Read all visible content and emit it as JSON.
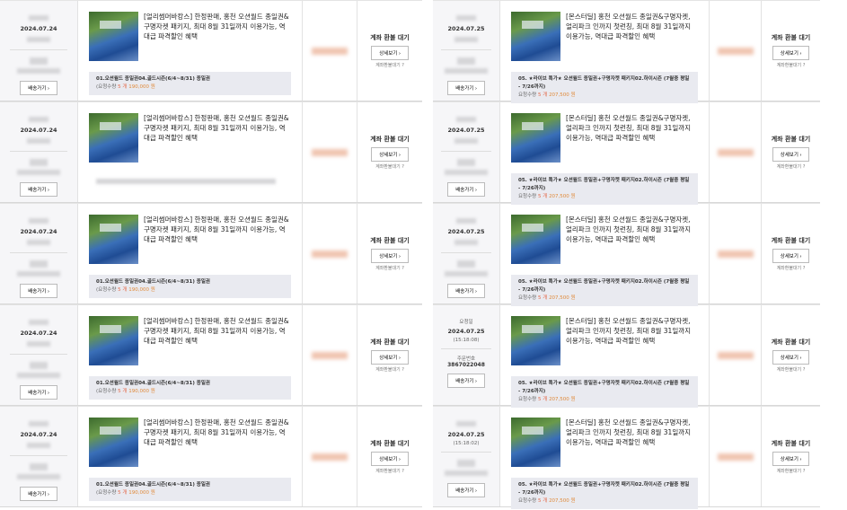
{
  "left_rows": [
    {
      "date": "2024.07.24",
      "button": "배송가기 ›",
      "title": "[얼리썸머바캉스] 한정판매, 홍천 오션월드 종일권&구명자켓 패키지, 최대 8월 31일까지 이용가능, 역대급 파격할인 혜택",
      "option": "01.오션월드 종일권04.골드시즌(6/4~8/31) 종일권",
      "qty_label": "(요청수량",
      "qty": "5 개",
      "price": "190,000 원",
      "status": "계좌 환불 대기",
      "detail": "상세보기 ›",
      "help": "계좌환불대기 ?"
    },
    {
      "date": "2024.07.24",
      "button": "배송가기 ›",
      "title": "[얼리썸머바캉스] 한정판매, 홍천 오션월드 종일권&구명자켓 패키지, 최대 8월 31일까지 이용가능, 역대급 파격할인 혜택",
      "option": "",
      "qty_label": "",
      "qty": "",
      "price": "",
      "status": "계좌 환불 대기",
      "detail": "상세보기 ›",
      "help": "계좌환불대기 ?"
    },
    {
      "date": "2024.07.24",
      "button": "배송가기 ›",
      "title": "[얼리썸머바캉스] 한정판매, 홍천 오션월드 종일권&구명자켓 패키지, 최대 8월 31일까지 이용가능, 역대급 파격할인 혜택",
      "option": "01.오션월드 종일권04.골드시즌(6/4~8/31) 종일권",
      "qty_label": "(요청수량",
      "qty": "5 개",
      "price": "190,000 원",
      "status": "계좌 환불 대기",
      "detail": "상세보기 ›",
      "help": "계좌환불대기 ?"
    },
    {
      "date": "2024.07.24",
      "button": "배송가기 ›",
      "title": "[얼리썸머바캉스] 한정판매, 홍천 오션월드 종일권&구명자켓 패키지, 최대 8월 31일까지 이용가능, 역대급 파격할인 혜택",
      "option": "01.오션월드 종일권04.골드시즌(6/4~8/31) 종일권",
      "qty_label": "(요청수량",
      "qty": "5 개",
      "price": "190,000 원",
      "status": "계좌 환불 대기",
      "detail": "상세보기 ›",
      "help": "계좌환불대기 ?"
    },
    {
      "date": "2024.07.24",
      "button": "배송가기 ›",
      "title": "[얼리썸머바캉스] 한정판매, 홍천 오션월드 종일권&구명자켓 패키지, 최대 8월 31일까지 이용가능, 역대급 파격할인 혜택",
      "option": "01.오션월드 종일권04.골드시즌(6/4~8/31) 종일권",
      "qty_label": "(요청수량",
      "qty": "5 개",
      "price": "190,000 원",
      "status": "계좌 환불 대기",
      "detail": "상세보기 ›",
      "help": "계좌환불대기 ?"
    }
  ],
  "right_rows": [
    {
      "date": "2024.07.25",
      "button": "배송가기 ›",
      "title": "[몬스터딜] 홍천 오션월드 종일권&구명자켓, 얼리파크 인까지 첫런칭, 최대 8월 31일까지 이용가능, 역대급 파격할인 혜택",
      "option": "05. ★라이브 특가★ 오션월드 종일권+구명자켓 패키지02.하이시즌 (7월중 평일 - 7/26까지)",
      "qty_label": "요청수량",
      "qty": "5 개",
      "price": "207,500 원",
      "status": "계좌 환불 대기",
      "detail": "상세보기 ›",
      "help": "계좌환불대기 ?"
    },
    {
      "date": "2024.07.25",
      "button": "배송가기 ›",
      "title": "[몬스터딜] 홍천 오션월드 종일권&구명자켓, 얼리파크 인까지 첫런칭, 최대 8월 31일까지 이용가능, 역대급 파격할인 혜택",
      "option": "05. ★라이브 특가★ 오션월드 종일권+구명자켓 패키지02.하이시즌 (7월중 평일 - 7/26까지)",
      "qty_label": "요청수량",
      "qty": "5 개",
      "price": "207,500 원",
      "status": "계좌 환불 대기",
      "detail": "상세보기 ›",
      "help": "계좌환불대기 ?"
    },
    {
      "date": "2024.07.25",
      "button": "배송가기 ›",
      "title": "[몬스터딜] 홍천 오션월드 종일권&구명자켓, 얼리파크 인까지 첫런칭, 최대 8월 31일까지 이용가능, 역대급 파격할인 혜택",
      "option": "05. ★라이브 특가★ 오션월드 종일권+구명자켓 패키지02.하이시즌 (7월중 평일 - 7/26까지)",
      "qty_label": "요청수량",
      "qty": "5 개",
      "price": "207,500 원",
      "status": "계좌 환불 대기",
      "detail": "상세보기 ›",
      "help": "계좌환불대기 ?"
    },
    {
      "req_label": "요청일",
      "date": "2024.07.25",
      "time": "(15:18:08)",
      "order_label": "주문번호",
      "order_no": "3867022048",
      "button": "배송가기 ›",
      "title": "[몬스터딜] 홍천 오션월드 종일권&구명자켓, 얼리파크 인까지 첫런칭, 최대 8월 31일까지 이용가능, 역대급 파격할인 혜택",
      "option": "05. ★라이브 특가★ 오션월드 종일권+구명자켓 패키지02.하이시즌 (7월중 평일 - 7/26까지)",
      "qty_label": "요청수량",
      "qty": "5 개",
      "price": "207,500 원",
      "status": "계좌 환불 대기",
      "detail": "상세보기 ›",
      "help": "계좌환불대기 ?"
    },
    {
      "date": "2024.07.25",
      "time": "(15:18:02)",
      "button": "배송가기 ›",
      "title": "[몬스터딜] 홍천 오션월드 종일권&구명자켓, 얼리파크 인까지 첫런칭, 최대 8월 31일까지 이용가능, 역대급 파격할인 혜택",
      "option": "05. ★라이브 특가★ 오션월드 종일권+구명자켓 패키지02.하이시즌 (7월중 평일 - 7/26까지)",
      "qty_label": "요청수량",
      "qty": "5 개",
      "price": "207,500 원",
      "status": "계좌 환불 대기",
      "detail": "상세보기 ›",
      "help": "계좌환불대기 ?"
    }
  ]
}
